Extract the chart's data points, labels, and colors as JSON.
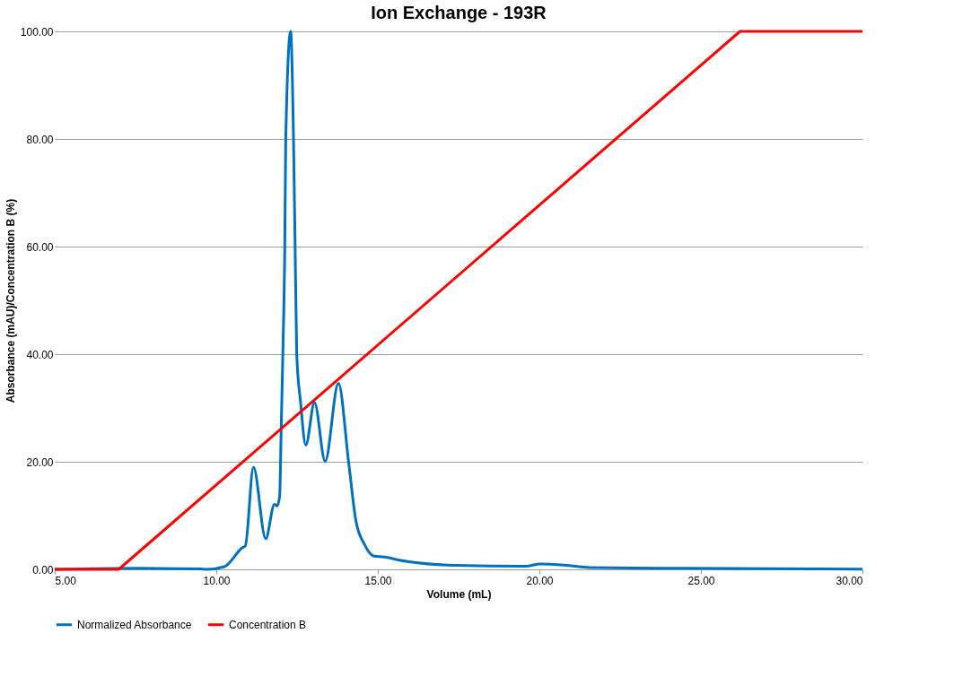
{
  "chart_data": {
    "type": "line",
    "title": "Ion Exchange - 193R",
    "xlabel": "Volume (mL)",
    "ylabel": "Absorbance (mAU)/Concentration B (%)",
    "xlim": [
      5,
      30
    ],
    "ylim": [
      0,
      100
    ],
    "xticks": [
      {
        "value": 5,
        "label": "5.00"
      },
      {
        "value": 10,
        "label": "10.00"
      },
      {
        "value": 15,
        "label": "15.00"
      },
      {
        "value": 20,
        "label": "20.00"
      },
      {
        "value": 25,
        "label": "25.00"
      },
      {
        "value": 30,
        "label": "30.00"
      }
    ],
    "yticks": [
      {
        "value": 0,
        "label": "0.00"
      },
      {
        "value": 20,
        "label": "20.00"
      },
      {
        "value": 40,
        "label": "40.00"
      },
      {
        "value": 60,
        "label": "60.00"
      },
      {
        "value": 80,
        "label": "80.00"
      },
      {
        "value": 100,
        "label": "100.00"
      }
    ],
    "grid": "y",
    "legend": "bottom",
    "marker": "none",
    "line_style": "solid",
    "series": [
      {
        "name": "Normalized Absorbance",
        "color": "#0070c0",
        "x": [
          5,
          7.6,
          9.5,
          9.71,
          10.25,
          10.8,
          10.9,
          11.15,
          11.53,
          11.8,
          11.88,
          11.96,
          12.01,
          12.06,
          12.12,
          12.15,
          12.3,
          12.39,
          12.44,
          12.49,
          12.61,
          12.77,
          13.04,
          13.37,
          13.78,
          14.1,
          14.32,
          14.59,
          14.86,
          14.98,
          15.29,
          15.67,
          15.97,
          17.16,
          19.57,
          20.03,
          20.77,
          21.55,
          24.47,
          30
        ],
        "values": [
          0,
          0.2,
          0.1,
          0,
          0.5,
          4.0,
          4.4,
          19.0,
          5.7,
          12.1,
          11.8,
          13.5,
          26.5,
          40,
          60,
          80,
          100,
          80,
          60,
          40,
          31,
          23.1,
          31,
          20.1,
          34.6,
          19.7,
          9.1,
          4.6,
          2.5,
          2.4,
          2.2,
          1.7,
          1.4,
          0.8,
          0.6,
          1.0,
          0.8,
          0.35,
          0.2,
          0.05
        ]
      },
      {
        "name": "Concentration B",
        "color": "#ff0000",
        "x": [
          5,
          6.98,
          26.21,
          30
        ],
        "values": [
          0,
          0,
          100,
          100
        ]
      }
    ]
  }
}
